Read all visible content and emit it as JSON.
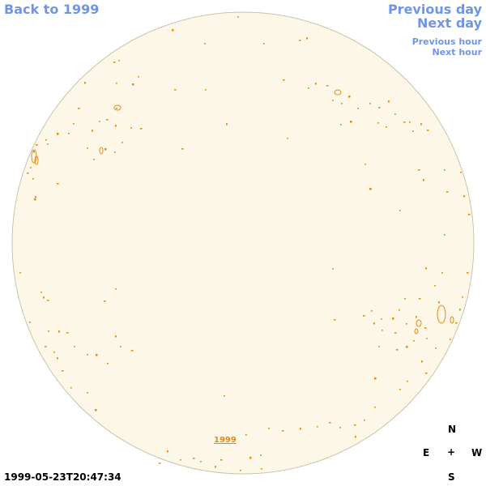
{
  "nav": {
    "back_label": "Back to 1999",
    "previous_day_label": "Previous day",
    "next_day_label": "Next day",
    "previous_hour_label": "Previous hour",
    "next_hour_label": "Next hour"
  },
  "disk": {
    "year_link_label": "1999"
  },
  "compass": {
    "north": "N",
    "east": "E",
    "center": "+",
    "west": "W",
    "south": "S"
  },
  "timestamp": "1999-05-23T20:47:34",
  "colors": {
    "link": "#6f95e4",
    "disk_fill": "#fdf7e8",
    "disk_border": "#c9c2ae",
    "feature": "#e38b10"
  }
}
